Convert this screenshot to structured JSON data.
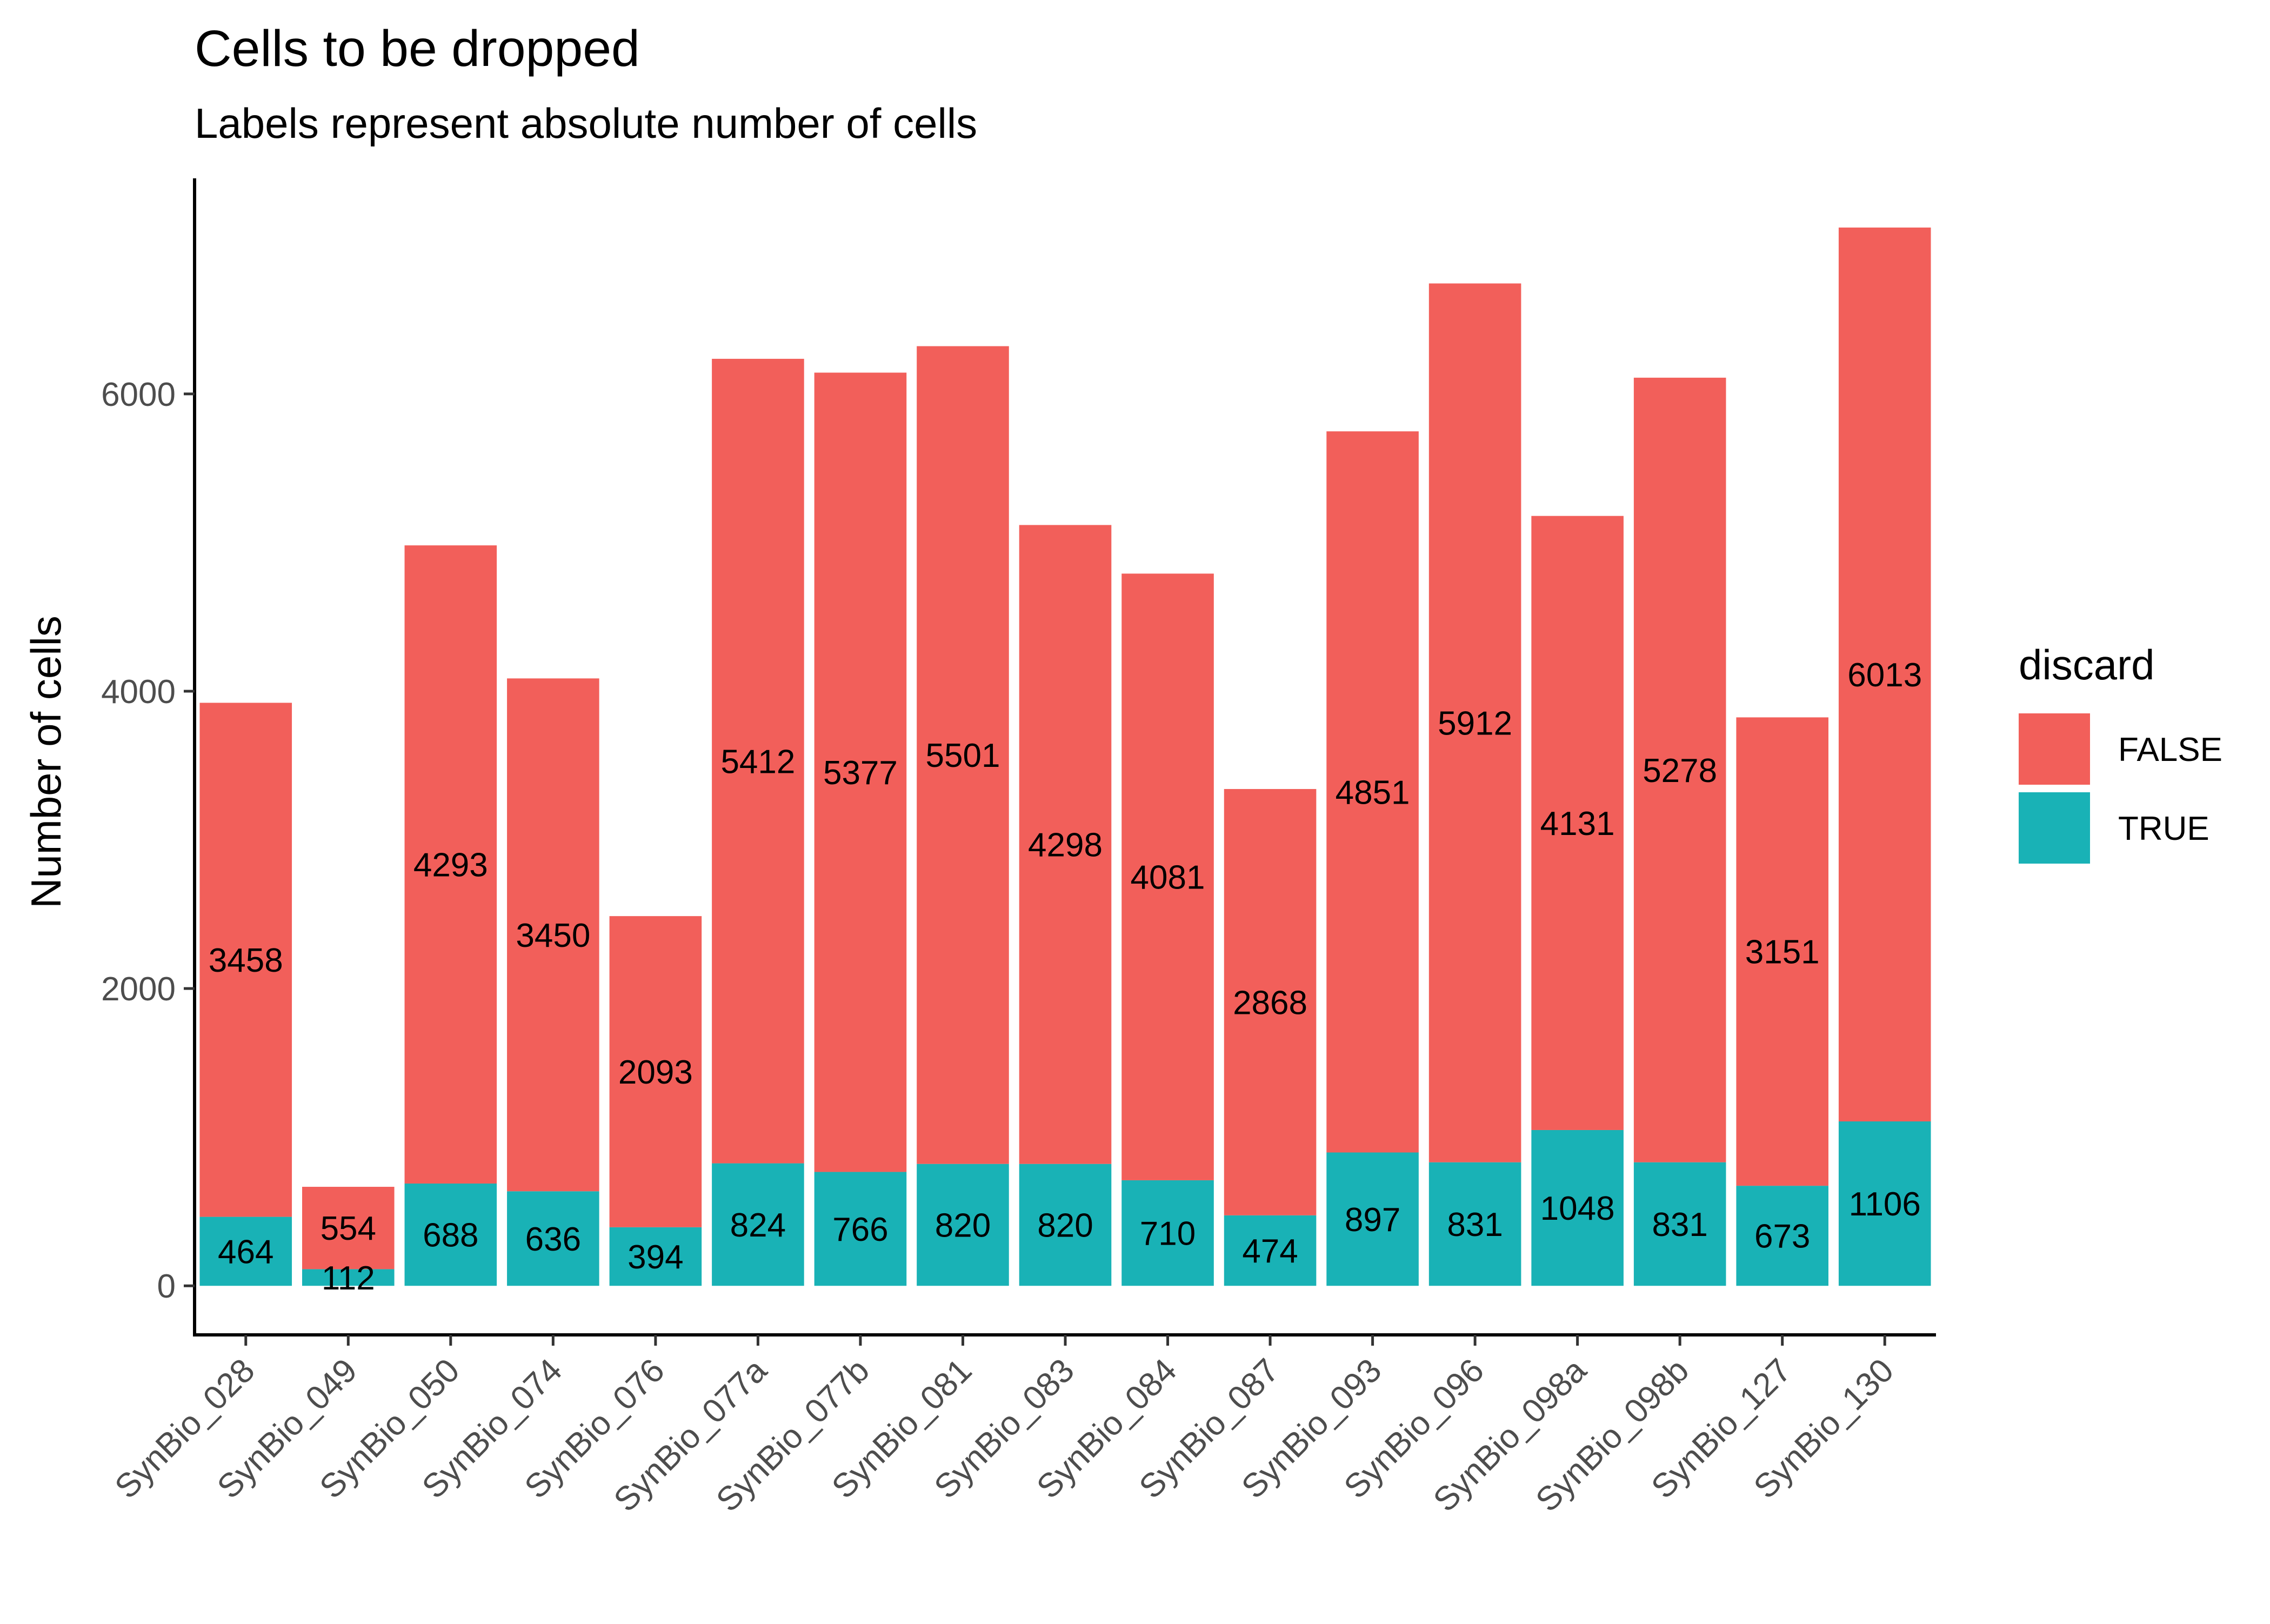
{
  "chart_data": {
    "type": "bar",
    "stacked": true,
    "title": "Cells to be dropped",
    "subtitle": "Labels represent absolute number of cells",
    "xlabel": "",
    "ylabel": "Number of cells",
    "ylim": [
      -330,
      7450
    ],
    "yticks": [
      0,
      2000,
      4000,
      6000
    ],
    "grid": false,
    "legend": {
      "title": "discard",
      "position": "right"
    },
    "categories": [
      "SynBio_028",
      "SynBio_049",
      "SynBio_050",
      "SynBio_074",
      "SynBio_076",
      "SynBio_077a",
      "SynBio_077b",
      "SynBio_081",
      "SynBio_083",
      "SynBio_084",
      "SynBio_087",
      "SynBio_093",
      "SynBio_096",
      "SynBio_098a",
      "SynBio_098b",
      "SynBio_127",
      "SynBio_130"
    ],
    "series": [
      {
        "name": "TRUE",
        "color": "#19b2b6",
        "values": [
          464,
          112,
          688,
          636,
          394,
          824,
          766,
          820,
          820,
          710,
          474,
          897,
          831,
          1048,
          831,
          673,
          1106
        ]
      },
      {
        "name": "FALSE",
        "color": "#f25f5a",
        "values": [
          3458,
          554,
          4293,
          3450,
          2093,
          5412,
          5377,
          5501,
          4298,
          4081,
          2868,
          4851,
          5912,
          4131,
          5278,
          3151,
          6013
        ]
      }
    ],
    "legend_order": [
      "FALSE",
      "TRUE"
    ]
  }
}
